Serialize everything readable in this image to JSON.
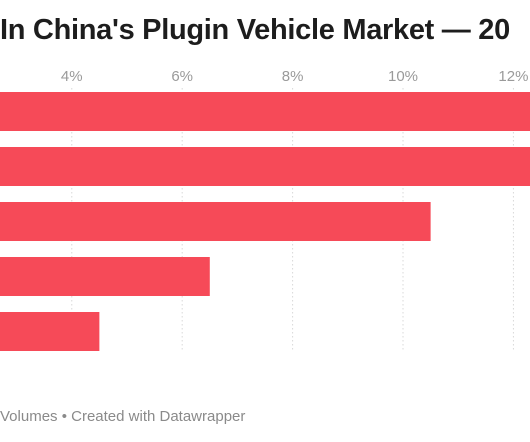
{
  "chart_data": {
    "type": "bar",
    "orientation": "horizontal",
    "title": "In China's Plugin Vehicle Market — 20",
    "source_note": "Volumes • Created with Datawrapper",
    "x_ticks": [
      4,
      6,
      8,
      10,
      12
    ],
    "x_tick_labels": [
      "4%",
      "6%",
      "8%",
      "10%",
      "12%"
    ],
    "xlim": [
      2.7,
      12.3
    ],
    "xlabel": "",
    "ylabel": "",
    "grid": true,
    "legend": "none",
    "categories": [
      "",
      "",
      "",
      "",
      ""
    ],
    "values": [
      12.5,
      12.5,
      10.5,
      6.5,
      4.5
    ],
    "bar_color": "#f64a58",
    "grid_color": "#d9d9d9"
  }
}
